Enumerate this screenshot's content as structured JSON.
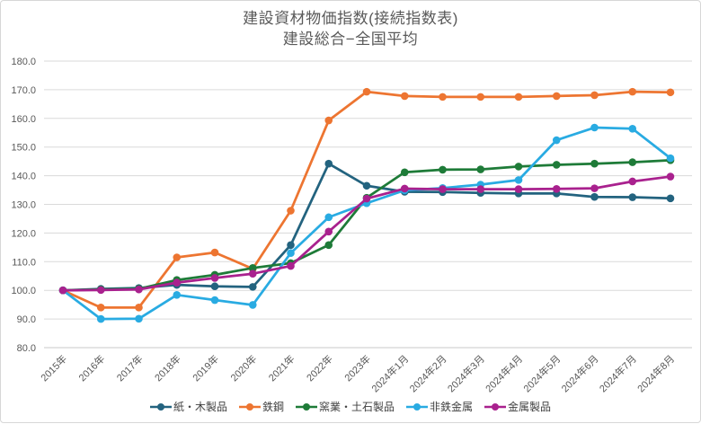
{
  "chart_data": {
    "type": "line",
    "title": "建設資材物価指数(接続指数表)",
    "subtitle": "建設総合−全国平均",
    "categories": [
      "2015年",
      "2016年",
      "2017年",
      "2018年",
      "2019年",
      "2020年",
      "2021年",
      "2022年",
      "2023年",
      "2024年1月",
      "2024年2月",
      "2024年3月",
      "2024年4月",
      "2024年5月",
      "2024年6月",
      "2024年7月",
      "2024年8月"
    ],
    "series": [
      {
        "name": "紙・木製品",
        "color": "#23637f",
        "values": [
          100.0,
          100.5,
          100.8,
          101.9,
          101.4,
          101.2,
          115.8,
          144.2,
          136.5,
          134.4,
          134.3,
          134.0,
          133.8,
          133.8,
          132.6,
          132.5,
          132.1
        ]
      },
      {
        "name": "鉄鋼",
        "color": "#ed7531",
        "values": [
          100.0,
          94.0,
          94.0,
          111.5,
          113.2,
          107.5,
          127.8,
          159.3,
          169.3,
          167.8,
          167.5,
          167.5,
          167.5,
          167.8,
          168.1,
          169.3,
          169.1
        ]
      },
      {
        "name": "窯業・土石製品",
        "color": "#1e7b38",
        "values": [
          100.0,
          100.3,
          100.5,
          103.6,
          105.4,
          107.8,
          109.5,
          115.8,
          132.3,
          141.2,
          142.1,
          142.2,
          143.2,
          143.8,
          144.2,
          144.7,
          145.4
        ]
      },
      {
        "name": "非鉄金属",
        "color": "#29abe2",
        "values": [
          100.0,
          90.0,
          90.1,
          98.4,
          96.6,
          94.9,
          113.0,
          125.5,
          130.4,
          134.9,
          135.7,
          136.9,
          138.5,
          152.4,
          156.8,
          156.4,
          146.1
        ]
      },
      {
        "name": "金属製品",
        "color": "#a9218e",
        "values": [
          100.0,
          100.1,
          100.3,
          102.7,
          104.3,
          105.8,
          108.5,
          120.5,
          132.0,
          135.5,
          135.3,
          135.3,
          135.3,
          135.4,
          135.6,
          138.0,
          139.7
        ]
      }
    ],
    "ylim": [
      80,
      180
    ],
    "ytick_step": 10,
    "ytick_labels": [
      "80.0",
      "90.0",
      "100.0",
      "110.0",
      "120.0",
      "130.0",
      "140.0",
      "150.0",
      "160.0",
      "170.0",
      "180.0"
    ],
    "grid": "horizontal",
    "legend_position": "bottom",
    "colors": {
      "text": "#595959",
      "gridline": "#dadada",
      "axis_line": "#c8c8c8",
      "legend_text": "#404040"
    }
  }
}
